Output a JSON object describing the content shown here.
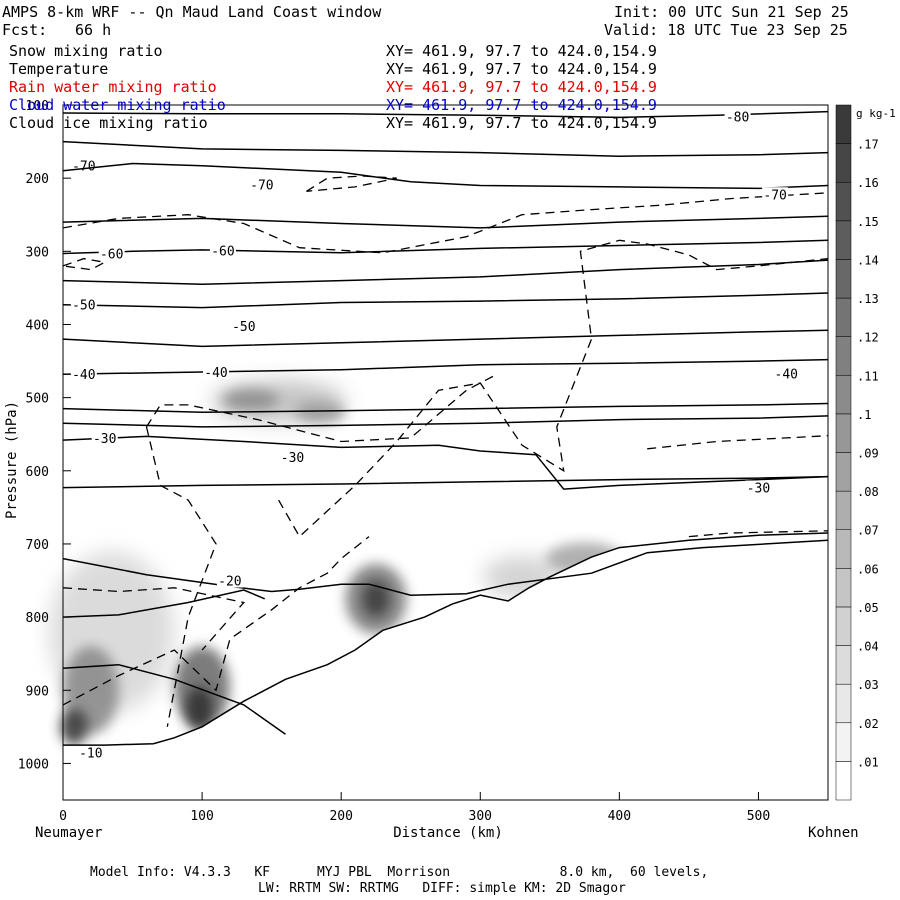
{
  "header": {
    "title": "AMPS 8-km WRF -- Qn Maud Land Coast window",
    "init": "Init: 00 UTC Sun 21 Sep 25",
    "fcst_label": "Fcst:",
    "fcst_value": "66 h",
    "valid": "Valid: 18 UTC Tue 23 Sep 25"
  },
  "legend": [
    {
      "name": "Snow mixing ratio",
      "xy": "XY= 461.9, 97.7 to 424.0,154.9",
      "color": "#000000"
    },
    {
      "name": "Temperature",
      "xy": "XY= 461.9, 97.7 to 424.0,154.9",
      "color": "#000000"
    },
    {
      "name": "Rain water mixing ratio",
      "xy": "XY= 461.9, 97.7 to 424.0,154.9",
      "color": "#e00000"
    },
    {
      "name": "Cloud water mixing ratio",
      "xy": "XY= 461.9, 97.7 to 424.0,154.9",
      "color": "#0000cc"
    },
    {
      "name": "Cloud ice mixing ratio",
      "xy": "XY= 461.9, 97.7 to 424.0,154.9",
      "color": "#000000"
    }
  ],
  "chart_data": {
    "type": "heatmap",
    "title": "AMPS 8-km WRF -- Qn Maud Land Coast window",
    "xlabel": "Distance (km)",
    "ylabel": "Pressure (hPa)",
    "xlim": [
      0,
      550
    ],
    "ylim": [
      1050,
      100
    ],
    "x_ticks": [
      0,
      100,
      200,
      300,
      400,
      500
    ],
    "y_ticks": [
      100,
      200,
      300,
      400,
      500,
      600,
      700,
      800,
      900,
      1000
    ],
    "x_start_label": "Neumayer",
    "x_end_label": "Kohnen",
    "colorbar": {
      "units": "g kg-1",
      "levels": [
        0.01,
        0.02,
        0.03,
        0.04,
        0.05,
        0.06,
        0.07,
        0.08,
        0.09,
        0.1,
        0.11,
        0.12,
        0.13,
        0.14,
        0.15,
        0.16,
        0.17
      ],
      "labels": [
        ".01",
        ".02",
        ".03",
        ".04",
        ".05",
        ".06",
        ".07",
        ".08",
        ".09",
        ".1",
        ".11",
        ".12",
        ".13",
        ".14",
        ".15",
        ".16",
        ".17"
      ]
    },
    "terrain": [
      [
        0,
        975
      ],
      [
        30,
        975
      ],
      [
        65,
        973
      ],
      [
        80,
        965
      ],
      [
        100,
        950
      ],
      [
        130,
        915
      ],
      [
        160,
        885
      ],
      [
        190,
        865
      ],
      [
        210,
        845
      ],
      [
        230,
        818
      ],
      [
        260,
        800
      ],
      [
        280,
        782
      ],
      [
        300,
        770
      ],
      [
        320,
        778
      ],
      [
        335,
        760
      ],
      [
        350,
        745
      ],
      [
        380,
        718
      ],
      [
        400,
        705
      ],
      [
        450,
        695
      ],
      [
        500,
        688
      ],
      [
        550,
        685
      ]
    ],
    "temperature_contours": [
      {
        "label": "-80",
        "points": [
          [
            0,
            111
          ],
          [
            100,
            112
          ],
          [
            200,
            112
          ],
          [
            300,
            114
          ],
          [
            400,
            117
          ],
          [
            470,
            114
          ],
          [
            550,
            109
          ]
        ],
        "label_at": [
          485,
          116
        ]
      },
      {
        "label": "-70",
        "points": [
          [
            0,
            150
          ],
          [
            100,
            160
          ],
          [
            200,
            162
          ],
          [
            300,
            165
          ],
          [
            400,
            170
          ],
          [
            500,
            168
          ],
          [
            550,
            165
          ]
        ],
        "label_at": [
          15,
          183
        ]
      },
      {
        "label": "-70",
        "points": [
          [
            0,
            190
          ],
          [
            50,
            180
          ],
          [
            100,
            183
          ],
          [
            200,
            192
          ],
          [
            250,
            205
          ],
          [
            300,
            210
          ],
          [
            400,
            212
          ],
          [
            500,
            214
          ],
          [
            550,
            210
          ]
        ],
        "label_at": [
          143,
          209
        ]
      },
      {
        "label": "-70",
        "points": [
          [
            0,
            260
          ],
          [
            100,
            255
          ],
          [
            200,
            262
          ],
          [
            300,
            268
          ],
          [
            400,
            260
          ],
          [
            500,
            255
          ],
          [
            550,
            252
          ]
        ],
        "label_at": [
          512,
          222
        ]
      },
      {
        "label": "-60",
        "points": [
          [
            0,
            303
          ],
          [
            50,
            300
          ],
          [
            100,
            298
          ],
          [
            200,
            302
          ],
          [
            300,
            296
          ],
          [
            400,
            292
          ],
          [
            500,
            288
          ],
          [
            550,
            285
          ]
        ],
        "label_at": [
          35,
          303
        ]
      },
      {
        "label": "-60",
        "points": [
          [
            0,
            340
          ],
          [
            100,
            345
          ],
          [
            200,
            340
          ],
          [
            300,
            335
          ],
          [
            400,
            325
          ],
          [
            500,
            318
          ],
          [
            550,
            312
          ]
        ],
        "label_at": [
          115,
          299
        ]
      },
      {
        "label": "-50",
        "points": [
          [
            0,
            373
          ],
          [
            100,
            377
          ],
          [
            200,
            370
          ],
          [
            300,
            368
          ],
          [
            400,
            365
          ],
          [
            500,
            360
          ],
          [
            550,
            357
          ]
        ],
        "label_at": [
          15,
          373
        ]
      },
      {
        "label": "-50",
        "points": [
          [
            0,
            420
          ],
          [
            100,
            430
          ],
          [
            200,
            425
          ],
          [
            300,
            420
          ],
          [
            400,
            415
          ],
          [
            500,
            410
          ],
          [
            550,
            408
          ]
        ],
        "label_at": [
          130,
          402
        ]
      },
      {
        "label": "-40",
        "points": [
          [
            0,
            468
          ],
          [
            100,
            465
          ],
          [
            200,
            462
          ],
          [
            300,
            455
          ],
          [
            400,
            453
          ],
          [
            500,
            450
          ],
          [
            550,
            448
          ]
        ],
        "label_at": [
          15,
          468
        ]
      },
      {
        "label": "-40",
        "points": [
          [
            0,
            515
          ],
          [
            100,
            520
          ],
          [
            200,
            518
          ],
          [
            300,
            515
          ],
          [
            400,
            512
          ],
          [
            500,
            510
          ],
          [
            550,
            508
          ]
        ],
        "label_at": [
          110,
          465
        ]
      },
      {
        "label": "-40",
        "points": [
          [
            0,
            535
          ],
          [
            100,
            540
          ],
          [
            200,
            538
          ],
          [
            300,
            535
          ],
          [
            400,
            530
          ],
          [
            500,
            528
          ],
          [
            550,
            525
          ]
        ],
        "label_at": [
          520,
          467
        ]
      },
      {
        "label": "-30",
        "points": [
          [
            0,
            558
          ],
          [
            60,
            553
          ],
          [
            130,
            560
          ],
          [
            200,
            568
          ],
          [
            270,
            565
          ],
          [
            300,
            573
          ],
          [
            340,
            578
          ],
          [
            360,
            625
          ],
          [
            400,
            620
          ],
          [
            500,
            612
          ],
          [
            550,
            608
          ]
        ],
        "label_at": [
          30,
          555
        ]
      },
      {
        "label": "-30",
        "points": [
          [
            0,
            623
          ],
          [
            100,
            620
          ],
          [
            200,
            618
          ],
          [
            300,
            615
          ],
          [
            400,
            612
          ],
          [
            500,
            610
          ],
          [
            550,
            608
          ]
        ],
        "label_at": [
          165,
          581
        ]
      },
      {
        "label": "-30",
        "points": [
          [
            0,
            720
          ],
          [
            60,
            742
          ],
          [
            120,
            758
          ],
          [
            150,
            765
          ],
          [
            170,
            762
          ],
          [
            200,
            755
          ],
          [
            220,
            755
          ],
          [
            250,
            770
          ],
          [
            290,
            768
          ],
          [
            320,
            755
          ],
          [
            380,
            740
          ],
          [
            420,
            712
          ],
          [
            460,
            705
          ],
          [
            550,
            695
          ]
        ],
        "label_at": [
          500,
          623
        ]
      },
      {
        "label": "-20",
        "points": [
          [
            0,
            800
          ],
          [
            40,
            797
          ],
          [
            90,
            780
          ],
          [
            130,
            763
          ],
          [
            145,
            775
          ]
        ],
        "label_at": [
          120,
          750
        ]
      },
      {
        "label": "-10",
        "points": [
          [
            0,
            870
          ],
          [
            40,
            865
          ],
          [
            80,
            885
          ],
          [
            130,
            920
          ],
          [
            160,
            960
          ]
        ],
        "label_at": [
          20,
          985
        ]
      }
    ]
  },
  "model_info": {
    "line1": "Model Info: V4.3.3   KF      MYJ PBL  Morrison              8.0 km,  60 levels,",
    "line2": "LW: RRTM SW: RRTMG   DIFF: simple KM: 2D Smagor"
  }
}
